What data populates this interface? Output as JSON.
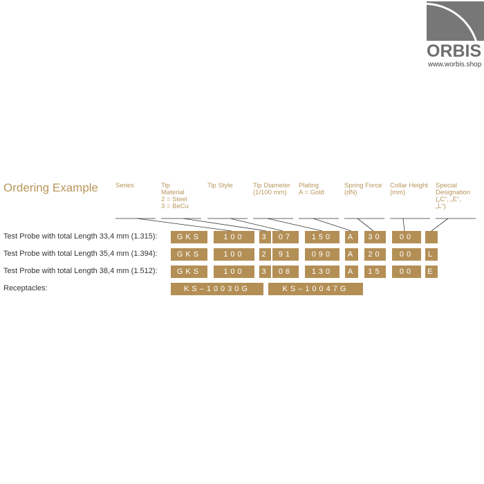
{
  "logo": {
    "name": "ORBIS",
    "url": "www.worbis.shop"
  },
  "title": "Ordering Example",
  "headers": [
    "Series",
    "Tip\nMaterial\n2 = Steel\n3 = BeCu",
    "Tip Style",
    "Tip Diameter\n(1/100 mm)",
    "Plating\nA = Gold",
    "Spring Force\n(dN)",
    "Collar Height\n(mm)",
    "Special\nDesignation\n(„C“, „E“,\n„L“)"
  ],
  "rows": [
    {
      "label": "Test Probe with total Length 33,4 mm (1.315):",
      "codes": [
        "GKS",
        "100",
        "3",
        "07",
        "150",
        "A",
        "30",
        "00",
        ""
      ]
    },
    {
      "label": "Test Probe with total Length 35,4 mm (1.394):",
      "codes": [
        "GKS",
        "100",
        "2",
        "91",
        "090",
        "A",
        "20",
        "00",
        "L"
      ]
    },
    {
      "label": "Test Probe with total Length 38,4 mm (1.512):",
      "codes": [
        "GKS",
        "100",
        "3",
        "06",
        "130",
        "A",
        "15",
        "00",
        "E"
      ]
    }
  ],
  "receptacles": {
    "label": "Receptacles:",
    "codes": [
      "KS–10030G",
      "KS–10047G"
    ]
  },
  "colors": {
    "gold": "#b38f56",
    "heading": "#b8955a"
  }
}
